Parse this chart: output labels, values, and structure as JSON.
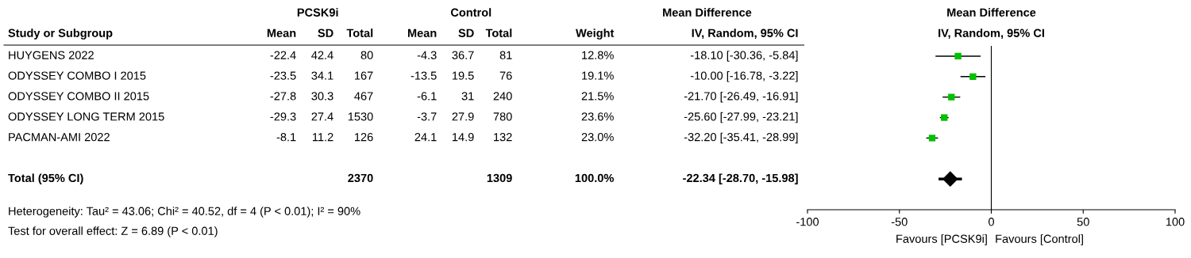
{
  "chart_data": [
    {
      "type": "other",
      "categories": [
        "Study or Subgroup",
        "Mean",
        "SD",
        "Total",
        "Mean",
        "SD",
        "Total",
        "Weight",
        "IV, Random, 95% CI"
      ],
      "y_categories": [
        "HUYGENS 2022",
        "ODYSSEY COMBO I 2015",
        "ODYSSEY COMBO II 2015",
        "ODYSSEY LONG TERM 2015",
        "PACMAN-AMI 2022",
        null,
        "Total (95% CI)"
      ],
      "cell_labels": [
        [
          "-22.4",
          "42.4",
          "80",
          "-4.3",
          "36.7",
          "81",
          "12.8%",
          "-18.10 [-30.36, -5.84]"
        ],
        [
          "-23.5",
          "34.1",
          "167",
          "-13.5",
          "19.5",
          "76",
          "19.1%",
          "-10.00 [-16.78, -3.22]"
        ],
        [
          "-27.8",
          "30.3",
          "467",
          "-6.1",
          "31",
          "240",
          "21.5%",
          "-21.70 [-26.49, -16.91]"
        ],
        [
          "-29.3",
          "27.4",
          "1530",
          "-3.7",
          "27.9",
          "780",
          "23.6%",
          "-25.60 [-27.99, -23.21]"
        ],
        [
          "-8.1",
          "11.2",
          "126",
          "24.1",
          "14.9",
          "132",
          "23.0%",
          "-32.20 [-35.41, -28.99]"
        ],
        null,
        [
          null,
          null,
          "2370",
          null,
          null,
          "1309",
          "100.0%",
          "-22.34 [-28.70, -15.98]"
        ]
      ],
      "annotations": [
        "PCSK9i",
        "Control",
        "Mean Difference",
        "Heterogeneity: Tau² = 43.06; Chi² = 40.52, df = 4 (P < 0.01); I² = 90%",
        "Test for overall effect: Z = 6.89 (P < 0.01)"
      ]
    },
    {
      "type": "scatter",
      "orientation": "horizontal",
      "title": "Mean Difference",
      "subtitle": "IV, Random, 95% CI",
      "categories": [
        null,
        null,
        null,
        null,
        null,
        null,
        null,
        null
      ],
      "series": [
        {
          "color": "#00c000",
          "marker": "square",
          "values": [
            -18.1,
            -10.0,
            -21.7,
            -25.6,
            -32.2,
            null,
            null,
            null
          ],
          "errors": [
            [
              -30.36,
              -5.84
            ],
            [
              -16.78,
              -3.22
            ],
            [
              -26.49,
              -16.91
            ],
            [
              -27.99,
              -23.21
            ],
            [
              -35.41,
              -28.99
            ],
            null,
            null,
            null
          ]
        },
        {
          "type": "scatter",
          "color": "#000000",
          "marker": "diamond",
          "values": [
            null,
            null,
            null,
            null,
            null,
            null,
            -22.34,
            null
          ],
          "errors": [
            null,
            null,
            null,
            null,
            null,
            null,
            [
              -28.7,
              -15.98
            ],
            null
          ]
        }
      ],
      "xlim": [
        -100,
        100
      ],
      "xticks": [
        -100,
        -50,
        0,
        50,
        100
      ],
      "ref_lines": [
        {
          "axis": "x",
          "value": 0,
          "color": "#000000"
        }
      ],
      "annotations": [
        "Favours [PCSK9i]",
        "Favours [Control]"
      ],
      "tick_labels": "x"
    }
  ]
}
